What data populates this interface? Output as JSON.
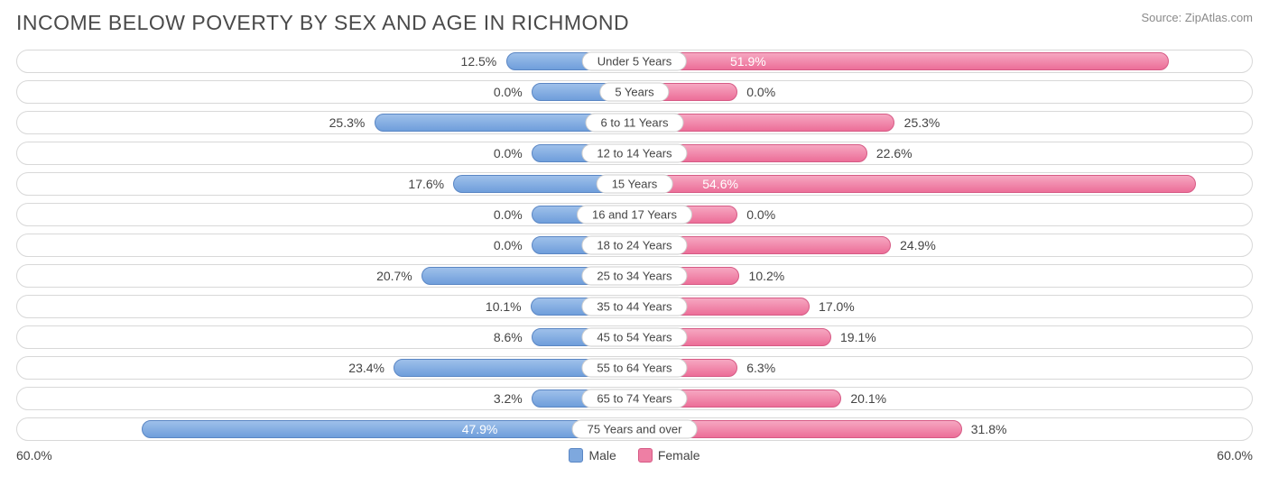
{
  "title": "INCOME BELOW POVERTY BY SEX AND AGE IN RICHMOND",
  "source": "Source: ZipAtlas.com",
  "axis_max": 60.0,
  "axis_left_label": "60.0%",
  "axis_right_label": "60.0%",
  "legend": {
    "male": "Male",
    "female": "Female"
  },
  "colors": {
    "male_fill_top": "#9ec0ea",
    "male_fill_bottom": "#6f9edb",
    "male_border": "#5a86c4",
    "female_fill_top": "#f6a7c1",
    "female_fill_bottom": "#ec6e98",
    "female_border": "#d65a85",
    "track_border": "#d8d8d8",
    "text": "#444444",
    "title_color": "#4a4a4a",
    "source_color": "#8a8a8a",
    "background": "#ffffff"
  },
  "min_bar_pct": 10.0,
  "rows": [
    {
      "label": "Under 5 Years",
      "male": 12.5,
      "female": 51.9
    },
    {
      "label": "5 Years",
      "male": 0.0,
      "female": 0.0
    },
    {
      "label": "6 to 11 Years",
      "male": 25.3,
      "female": 25.3
    },
    {
      "label": "12 to 14 Years",
      "male": 0.0,
      "female": 22.6
    },
    {
      "label": "15 Years",
      "male": 17.6,
      "female": 54.6
    },
    {
      "label": "16 and 17 Years",
      "male": 0.0,
      "female": 0.0
    },
    {
      "label": "18 to 24 Years",
      "male": 0.0,
      "female": 24.9
    },
    {
      "label": "25 to 34 Years",
      "male": 20.7,
      "female": 10.2
    },
    {
      "label": "35 to 44 Years",
      "male": 10.1,
      "female": 17.0
    },
    {
      "label": "45 to 54 Years",
      "male": 8.6,
      "female": 19.1
    },
    {
      "label": "55 to 64 Years",
      "male": 23.4,
      "female": 6.3
    },
    {
      "label": "65 to 74 Years",
      "male": 3.2,
      "female": 20.1
    },
    {
      "label": "75 Years and over",
      "male": 47.9,
      "female": 31.8
    }
  ]
}
